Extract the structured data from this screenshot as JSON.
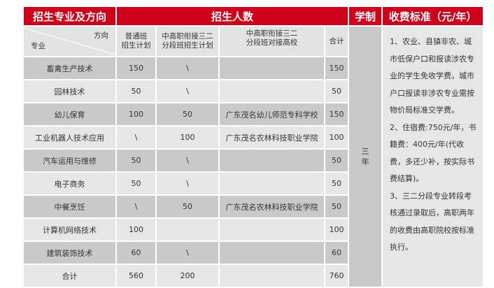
{
  "header": {
    "major_direction": "招生专业及方向",
    "enrollment": "招生人数",
    "duration": "学制",
    "fees": "收费标准（元/年）"
  },
  "subheader": {
    "direction": "方向",
    "major": "专业",
    "regular_plan": "普通班\n招生计划",
    "sanerfenduan_plan": "中高职衔接三二\n分段班招生计划",
    "partner_college": "中高职衔接三二\n分段班对接高校",
    "total": "合计"
  },
  "duration_value": "三年",
  "fee_text": "1、农业、县镇非农、城市低保户口和报读涉农专业的学生免收学费。城市户口报读非涉农专业需按物价局标准交学费。\n2、住宿费:750元/年，书籍费：400元/年(代收费，多还少补，按实际书费结算)。\n3、三二分段专业转段考核通过录取后，高职两年的收费由高职院校按标准执行。",
  "rows": [
    {
      "major": "畜禽生产技术",
      "regular": "150",
      "sanerfenduan": "\\",
      "college": "",
      "total": "150"
    },
    {
      "major": "园林技术",
      "regular": "50",
      "sanerfenduan": "\\",
      "college": "",
      "total": "50"
    },
    {
      "major": "幼儿保育",
      "regular": "100",
      "sanerfenduan": "50",
      "college": "广东茂名幼儿师范专科学校",
      "total": "150"
    },
    {
      "major": "工业机器人技术应用",
      "regular": "\\",
      "sanerfenduan": "100",
      "college": "广东茂名农林科技职业学院",
      "total": "100"
    },
    {
      "major": "汽车运用与维修",
      "regular": "50",
      "sanerfenduan": "\\",
      "college": "",
      "total": "50"
    },
    {
      "major": "电子商务",
      "regular": "50",
      "sanerfenduan": "\\",
      "college": "",
      "total": "50"
    },
    {
      "major": "中餐烹饪",
      "regular": "\\",
      "sanerfenduan": "50",
      "college": "广东茂名农林科技职业学院",
      "total": "50"
    },
    {
      "major": "计算机网络技术",
      "regular": "100",
      "sanerfenduan": "",
      "college": "",
      "total": "100"
    },
    {
      "major": "建筑装饰技术",
      "regular": "60",
      "sanerfenduan": "\\",
      "college": "",
      "total": "60"
    },
    {
      "major": "合计",
      "regular": "560",
      "sanerfenduan": "200",
      "college": "",
      "total": "760"
    }
  ],
  "colors": {
    "header_red": "#d0021b",
    "row_dark": "#c9c9c9",
    "row_light": "#e6e6e6"
  }
}
